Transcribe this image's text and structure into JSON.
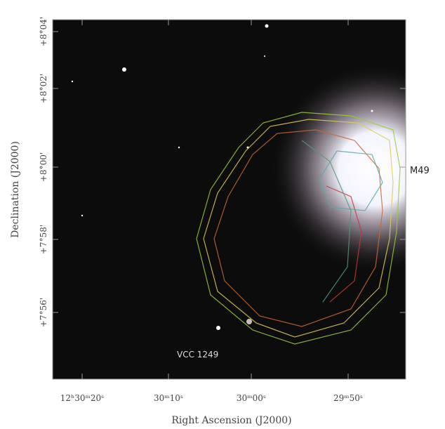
{
  "figure": {
    "xlabel": "Right Ascension (J2000)",
    "ylabel": "Declination (J2000)",
    "xtick_labels": [
      "12ʰ30ᵐ20ˢ",
      "30ᵐ10ˢ",
      "30ᵐ00ˢ",
      "29ᵐ50ˢ"
    ],
    "ytick_labels": [
      "+8°04'",
      "+8°02'",
      "+8°00'",
      "+7°58'",
      "+7°56'"
    ],
    "annotations": [
      "M49",
      "VCC 1249"
    ]
  }
}
